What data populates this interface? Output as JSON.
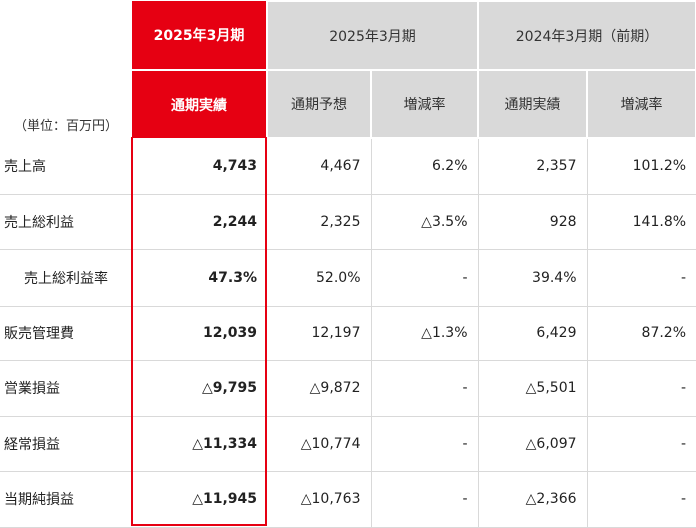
{
  "header": {
    "unit_label": "（単位：百万円）",
    "groups": [
      {
        "label": "2025年3月期"
      },
      {
        "label": "2025年3月期"
      },
      {
        "label": "2024年3月期（前期）"
      }
    ],
    "subcolumns": [
      "通期実績",
      "通期予想",
      "増減率",
      "通期実績",
      "増減率"
    ]
  },
  "rows": [
    {
      "label": "売上高",
      "actual_2025": "4,743",
      "forecast_2025": "4,467",
      "change_vs_forecast": "6.2%",
      "actual_2024": "2,357",
      "change_yoy": "101.2%"
    },
    {
      "label": "売上総利益",
      "actual_2025": "2,244",
      "forecast_2025": "2,325",
      "change_vs_forecast": "△3.5%",
      "actual_2024": "928",
      "change_yoy": "141.8%"
    },
    {
      "label": "売上総利益率",
      "actual_2025": "47.3%",
      "forecast_2025": "52.0%",
      "change_vs_forecast": "-",
      "actual_2024": "39.4%",
      "change_yoy": "-"
    },
    {
      "label": "販売管理費",
      "actual_2025": "12,039",
      "forecast_2025": "12,197",
      "change_vs_forecast": "△1.3%",
      "actual_2024": "6,429",
      "change_yoy": "87.2%"
    },
    {
      "label": "営業損益",
      "actual_2025": "△9,795",
      "forecast_2025": "△9,872",
      "change_vs_forecast": "-",
      "actual_2024": "△5,501",
      "change_yoy": "-"
    },
    {
      "label": "経常損益",
      "actual_2025": "△11,334",
      "forecast_2025": "△10,774",
      "change_vs_forecast": "-",
      "actual_2024": "△6,097",
      "change_yoy": "-"
    },
    {
      "label": "当期純損益",
      "actual_2025": "△11,945",
      "forecast_2025": "△10,763",
      "change_vs_forecast": "-",
      "actual_2024": "△2,366",
      "change_yoy": "-"
    }
  ],
  "colors": {
    "accent_red": "#e60012",
    "header_gray": "#d9d9d9",
    "rule_gray": "#d9d9d9"
  }
}
